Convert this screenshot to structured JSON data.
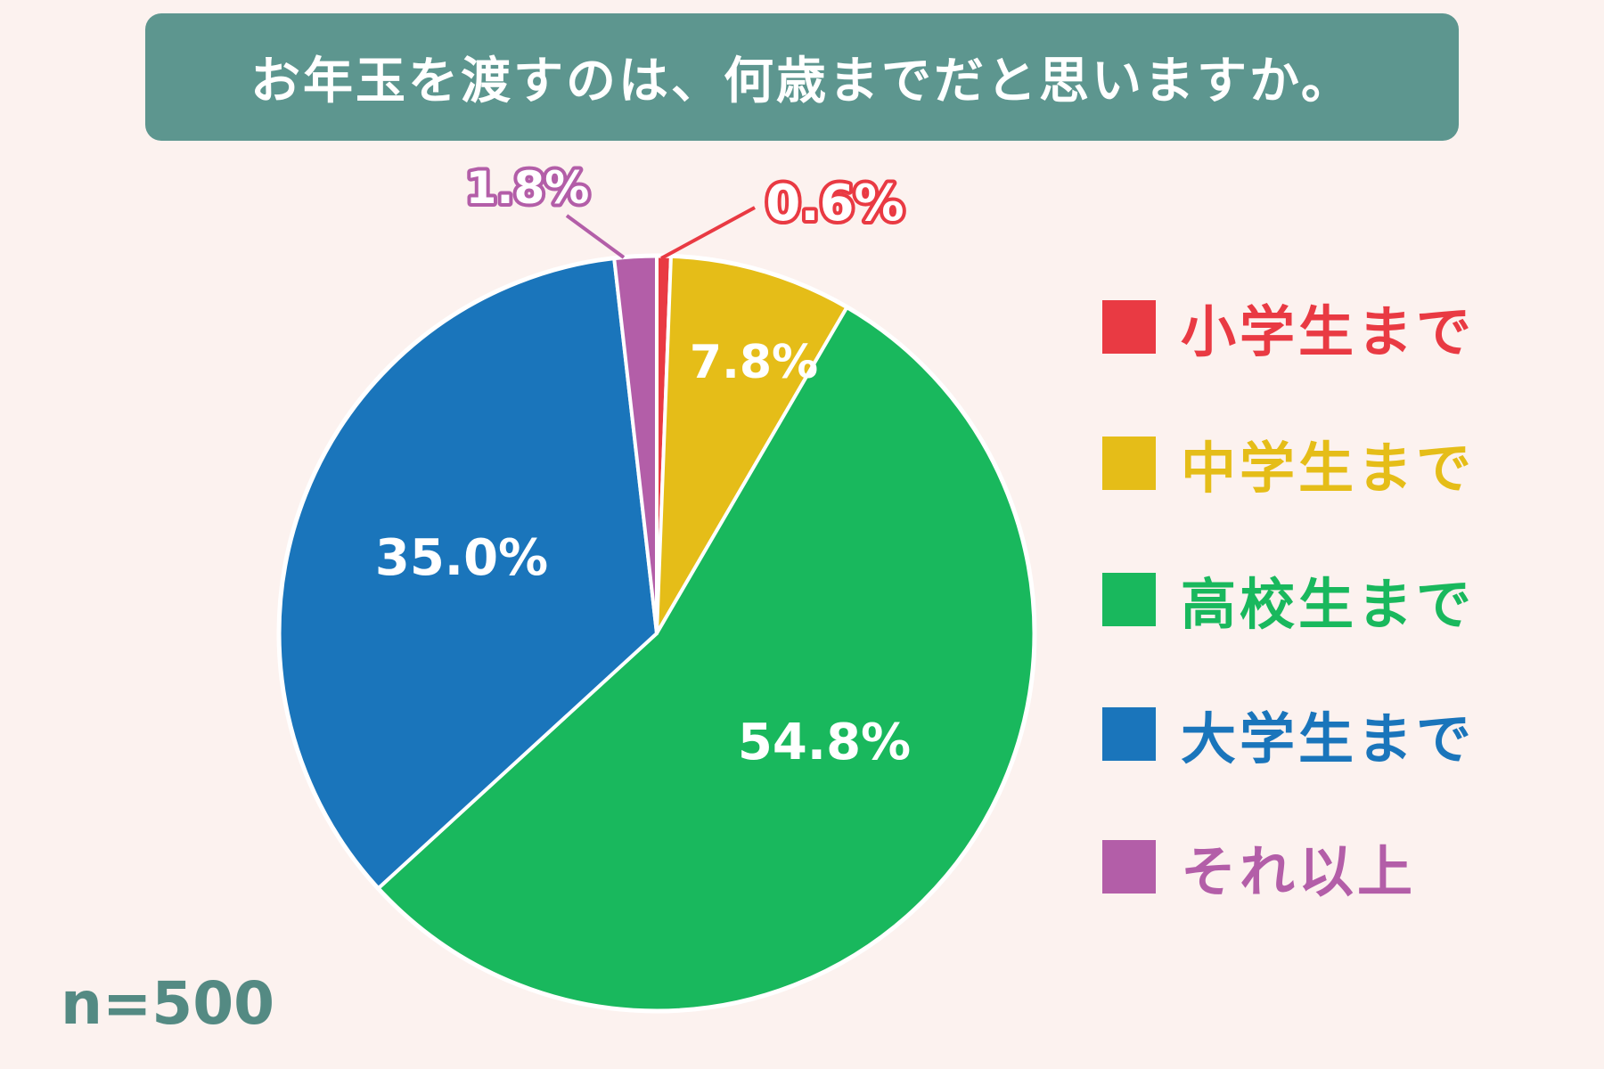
{
  "title": "お年玉を渡すのは、何歳までだと思いますか。",
  "sample_size": "n=500",
  "colors": {
    "background": "#fcf2ef",
    "title_bar": "#5d968f",
    "title_text": "#ffffff",
    "sample_text": "#548a83"
  },
  "legend": [
    {
      "label": "小学生まで",
      "color": "#e93a43"
    },
    {
      "label": "中学生まで",
      "color": "#e5bd18"
    },
    {
      "label": "高校生まで",
      "color": "#19b85d"
    },
    {
      "label": "大学生まで",
      "color": "#1a75bb"
    },
    {
      "label": "それ以上",
      "color": "#b35ea8"
    }
  ],
  "slice_labels": {
    "elementary": "0.6%",
    "junior_high": "7.8%",
    "high_school": "54.8%",
    "university": "35.0%",
    "beyond": "1.8%"
  },
  "chart_data": {
    "type": "pie",
    "title": "お年玉を渡すのは、何歳までだと思いますか。",
    "categories": [
      "小学生まで",
      "中学生まで",
      "高校生まで",
      "大学生まで",
      "それ以上"
    ],
    "values": [
      0.6,
      7.8,
      54.8,
      35.0,
      1.8
    ],
    "unit": "%",
    "colors": [
      "#e93a43",
      "#e5bd18",
      "#19b85d",
      "#1a75bb",
      "#b35ea8"
    ],
    "start_angle": "12 o'clock, clockwise",
    "legend_position": "right",
    "annotations": [
      "n=500"
    ]
  }
}
